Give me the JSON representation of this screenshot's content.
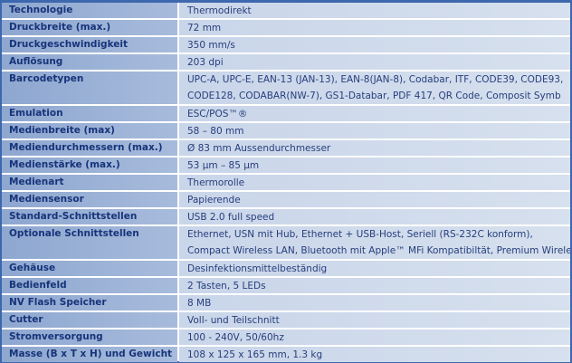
{
  "specs": [
    {
      "label": "Technologie",
      "lines": [
        "Thermodirekt"
      ]
    },
    {
      "label": "Druckbreite (max.)",
      "lines": [
        "72 mm"
      ]
    },
    {
      "label": "Druckgeschwindigkeit",
      "lines": [
        "350 mm/s"
      ]
    },
    {
      "label": "Auflösung",
      "lines": [
        "203 dpi"
      ]
    },
    {
      "label": "Barcodetypen",
      "lines": [
        "UPC-A, UPC-E, EAN-13 (JAN-13), EAN-8(JAN-8), Codabar, ITF, CODE39, CODE93,",
        "CODE128, CODABAR(NW-7), GS1-Databar, PDF 417, QR Code, Composit Symb"
      ]
    },
    {
      "label": "Emulation",
      "lines": [
        "ESC/POS™®"
      ]
    },
    {
      "label": "Medienbreite (max)",
      "lines": [
        "58 – 80 mm"
      ]
    },
    {
      "label": "Mediendurchmessern (max.)",
      "lines": [
        "Ø 83 mm Aussendurchmesser"
      ]
    },
    {
      "label": "Medienstärke (max.)",
      "lines": [
        "53 µm – 85 µm"
      ]
    },
    {
      "label": "Medienart",
      "lines": [
        "Thermorolle"
      ]
    },
    {
      "label": "Mediensensor",
      "lines": [
        "Papierende"
      ]
    },
    {
      "label": "Standard-Schnittstellen",
      "lines": [
        "USB 2.0 full speed"
      ]
    },
    {
      "label": "Optionale Schnittstellen",
      "lines": [
        "Ethernet, USN mit Hub, Ethernet + USB-Host, Seriell (RS-232C konform),",
        "Compact Wireless LAN, Bluetooth mit Apple™ MFi Kompatibiltät, Premium Wireless LAN"
      ]
    },
    {
      "label": "Gehäuse",
      "lines": [
        "Desinfektionsmittelbeständig"
      ]
    },
    {
      "label": "Bedienfeld",
      "lines": [
        "2 Tasten, 5 LEDs"
      ]
    },
    {
      "label": "NV Flash Speicher",
      "lines": [
        "8 MB"
      ]
    },
    {
      "label": "Cutter",
      "lines": [
        "Voll- und Teilschnitt"
      ]
    },
    {
      "label": "Stromversorgung",
      "lines": [
        "100 - 240V, 50/60hz"
      ]
    },
    {
      "label": "Masse (B x T x H) und Gewicht",
      "lines": [
        "108 x 125 x 165 mm, 1.3 kg"
      ]
    }
  ]
}
